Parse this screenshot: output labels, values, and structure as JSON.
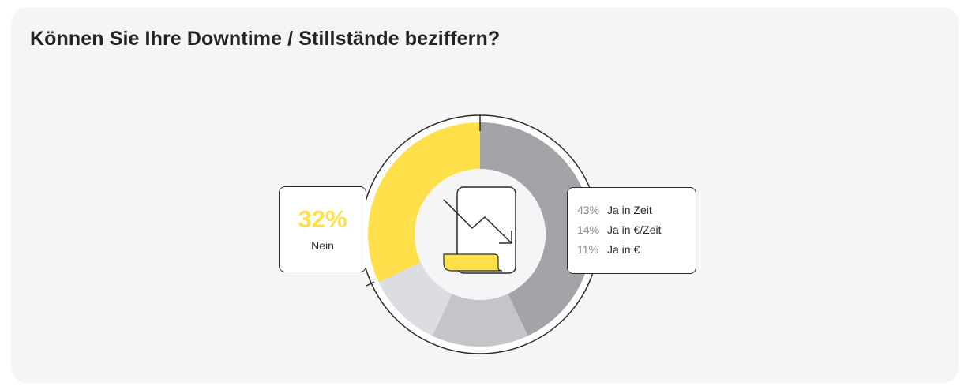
{
  "title": "Können Sie Ihre Downtime / Stillstände beziffern?",
  "colors": {
    "card_bg": "#f5f5f7",
    "nein": "#ffe04a",
    "ja_zeit": "#a3a3a8",
    "ja_euro_zeit": "#c4c4c9",
    "ja_euro": "#dcdce3",
    "outline": "#2b2b2b"
  },
  "icons": {
    "center": "declining-chart-icon"
  },
  "chart_data": {
    "type": "pie",
    "variant": "donut",
    "title": "Können Sie Ihre Downtime / Stillstände beziffern?",
    "unit": "%",
    "slices": [
      {
        "label": "Ja in Zeit",
        "value": 43,
        "color": "#a3a3a8"
      },
      {
        "label": "Ja in €/Zeit",
        "value": 14,
        "color": "#c4c4c9"
      },
      {
        "label": "Ja in €",
        "value": 11,
        "color": "#dcdce3"
      },
      {
        "label": "Nein",
        "value": 32,
        "color": "#ffe04a"
      }
    ],
    "callouts": {
      "left": {
        "value": "32%",
        "label": "Nein"
      },
      "right": [
        {
          "value": "43%",
          "label": "Ja in Zeit"
        },
        {
          "value": "14%",
          "label": "Ja in €/Zeit"
        },
        {
          "value": "11%",
          "label": "Ja in €"
        }
      ]
    }
  }
}
